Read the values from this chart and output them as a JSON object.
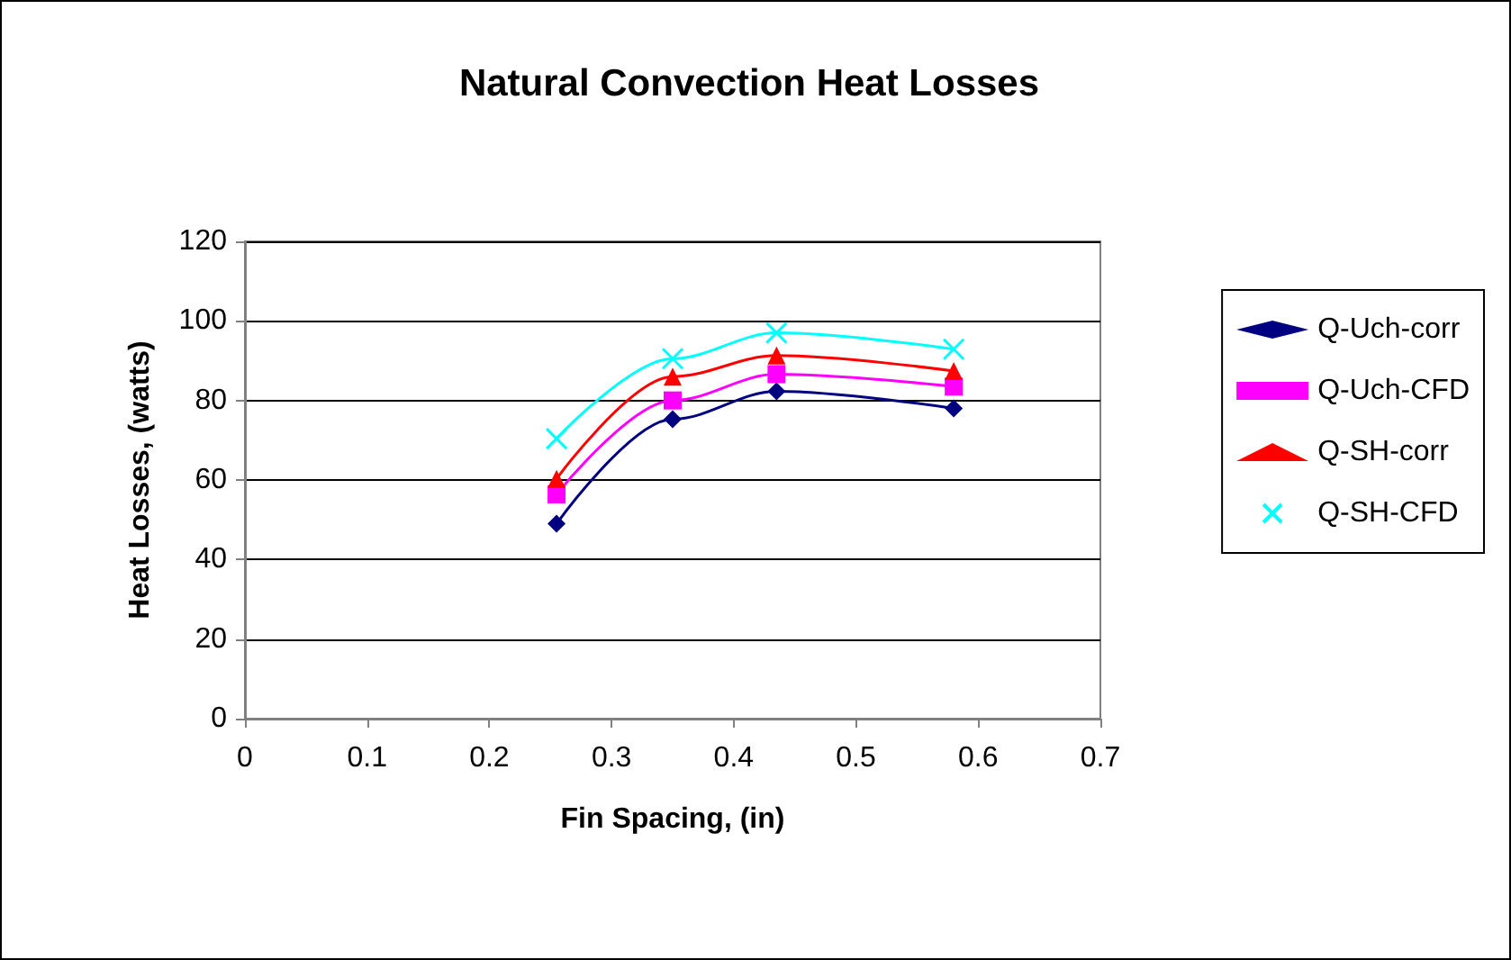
{
  "chart_data": {
    "type": "line",
    "title": "Natural Convection Heat Losses",
    "xlabel": "Fin Spacing, (in)",
    "ylabel": "Heat Losses, (watts)",
    "x": [
      0.255,
      0.35,
      0.435,
      0.58
    ],
    "series": [
      {
        "name": "Q-Uch-corr",
        "color": "#000080",
        "marker": "diamond",
        "values": [
          49,
          75.3,
          82.3,
          78
        ]
      },
      {
        "name": "Q-Uch-CFD",
        "color": "#ff00ff",
        "marker": "square",
        "values": [
          56.4,
          80,
          86.6,
          83.5
        ]
      },
      {
        "name": "Q-SH-corr",
        "color": "#ff0000",
        "marker": "triangle",
        "values": [
          60.3,
          86,
          91.3,
          87.4
        ]
      },
      {
        "name": "Q-SH-CFD",
        "color": "#00ffff",
        "marker": "cross",
        "values": [
          70.4,
          90.5,
          97,
          92.9
        ]
      }
    ],
    "xlim": [
      0,
      0.7
    ],
    "xticks": [
      0,
      0.1,
      0.2,
      0.3,
      0.4,
      0.5,
      0.6,
      0.7
    ],
    "ylim": [
      0,
      120
    ],
    "yticks": [
      0,
      20,
      40,
      60,
      80,
      100,
      120
    ],
    "grid": "y",
    "legend": "right"
  }
}
